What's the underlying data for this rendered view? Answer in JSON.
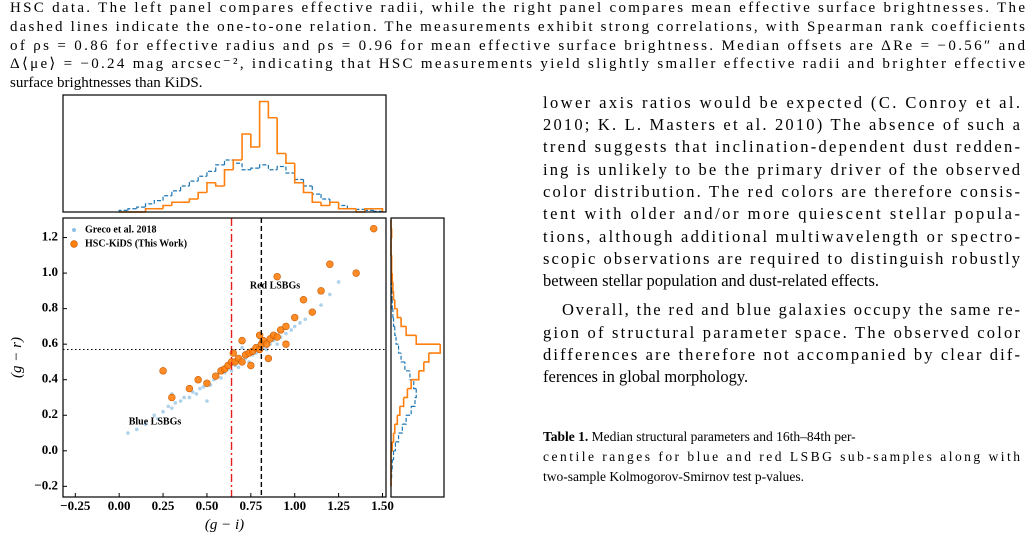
{
  "caption": {
    "lines": [
      "HSC data. The left panel compares effective radii, while the right panel compares mean effective surface brightnesses. The",
      "dashed lines indicate the one-to-one relation. The measurements exhibit strong correlations, with Spearman rank coefficients",
      "of ρs = 0.86 for effective radius and ρs = 0.96 for mean effective surface brightness. Median offsets are ΔRe = −0.56″ and",
      "Δ⟨μe⟩ = −0.24 mag arcsec⁻², indicating that HSC measurements yield slightly smaller effective radii and brighter effective",
      "surface brightnesses than KiDS."
    ]
  },
  "chart_data": [
    {
      "type": "scatter",
      "xlabel": "(g − i)",
      "ylabel": "(g − r)",
      "xlim": [
        -0.32,
        1.52
      ],
      "ylim": [
        -0.26,
        1.31
      ],
      "xticks": [
        {
          "value": -0.25,
          "label": "−0.25"
        },
        {
          "value": 0,
          "label": "0.00"
        },
        0.25,
        {
          "value": 0.5,
          "label": "0.50"
        },
        0.75,
        {
          "value": 1,
          "label": "1.00"
        },
        1.25,
        {
          "value": 1.5,
          "label": "1.50"
        }
      ],
      "yticks": [
        {
          "value": -0.2,
          "label": "−0.2"
        },
        {
          "value": 0,
          "label": "0.0"
        },
        0.2,
        0.4,
        0.6,
        0.8,
        {
          "value": 1,
          "label": "1.0"
        },
        1.2
      ],
      "legend": "upper left",
      "annotations": [
        "Red LSBGs",
        "Blue LSBGs"
      ],
      "vlines": [
        {
          "value": 0.64,
          "color": "#e8201a",
          "style": "dashdot"
        },
        {
          "value": 0.81,
          "color": "#000000",
          "style": "dashed"
        }
      ],
      "hlines": [
        {
          "value": 0.57,
          "color": "#000000",
          "style": "dotted"
        }
      ],
      "series": [
        {
          "name": "Greco et al. 2018",
          "color": "#8dbfe2",
          "x": [
            0.05,
            0.1,
            0.15,
            0.2,
            0.22,
            0.25,
            0.28,
            0.3,
            0.32,
            0.35,
            0.37,
            0.4,
            0.42,
            0.44,
            0.46,
            0.48,
            0.5,
            0.52,
            0.54,
            0.56,
            0.58,
            0.6,
            0.62,
            0.64,
            0.66,
            0.68,
            0.7,
            0.72,
            0.74,
            0.76,
            0.78,
            0.8,
            0.82,
            0.84,
            0.86,
            0.88,
            0.9,
            0.92,
            0.95,
            0.98,
            1.0,
            1.03,
            1.06,
            1.1,
            1.15,
            1.2,
            1.25,
            0.3,
            0.5,
            0.7
          ],
          "values": [
            0.1,
            0.12,
            0.15,
            0.2,
            0.18,
            0.22,
            0.25,
            0.24,
            0.27,
            0.28,
            0.3,
            0.3,
            0.33,
            0.32,
            0.35,
            0.36,
            0.38,
            0.37,
            0.4,
            0.42,
            0.41,
            0.44,
            0.46,
            0.45,
            0.48,
            0.47,
            0.5,
            0.52,
            0.5,
            0.54,
            0.55,
            0.56,
            0.58,
            0.57,
            0.6,
            0.62,
            0.6,
            0.64,
            0.66,
            0.68,
            0.7,
            0.72,
            0.74,
            0.78,
            0.82,
            0.88,
            0.95,
            0.32,
            0.28,
            0.58
          ]
        },
        {
          "name": "HSC-KiDS (This Work)",
          "color": "#ff7f0e",
          "x": [
            0.3,
            0.4,
            0.45,
            0.5,
            0.55,
            0.58,
            0.6,
            0.62,
            0.64,
            0.66,
            0.68,
            0.7,
            0.72,
            0.74,
            0.76,
            0.78,
            0.8,
            0.81,
            0.82,
            0.84,
            0.86,
            0.88,
            0.9,
            0.92,
            0.95,
            1.0,
            1.05,
            1.1,
            1.15,
            1.2,
            1.35,
            1.45,
            0.7,
            0.75,
            0.85,
            0.9,
            0.65,
            0.8,
            0.95,
            0.25
          ],
          "values": [
            0.3,
            0.35,
            0.4,
            0.38,
            0.42,
            0.45,
            0.46,
            0.48,
            0.5,
            0.5,
            0.52,
            0.5,
            0.54,
            0.55,
            0.56,
            0.58,
            0.57,
            0.6,
            0.62,
            0.6,
            0.63,
            0.65,
            0.64,
            0.68,
            0.7,
            0.75,
            0.85,
            0.78,
            0.9,
            1.05,
            1.0,
            1.25,
            0.62,
            0.48,
            0.52,
            0.98,
            0.55,
            0.65,
            0.6,
            0.45
          ]
        }
      ]
    },
    {
      "type": "histogram",
      "orientation": "vertical",
      "xlim": [
        -0.32,
        1.52
      ],
      "ylim": [
        0,
        3.6
      ],
      "bins": [
        0,
        0.05,
        0.1,
        0.15,
        0.2,
        0.25,
        0.3,
        0.35,
        0.4,
        0.45,
        0.5,
        0.55,
        0.6,
        0.65,
        0.7,
        0.75,
        0.8,
        0.85,
        0.9,
        0.95,
        1.0,
        1.05,
        1.1,
        1.15,
        1.2,
        1.25,
        1.3,
        1.35,
        1.4,
        1.45,
        1.5
      ],
      "series": [
        {
          "color": "#1f77b4",
          "dash": true,
          "values": [
            0.05,
            0.1,
            0.15,
            0.25,
            0.35,
            0.5,
            0.65,
            0.8,
            0.95,
            1.1,
            1.25,
            1.45,
            1.6,
            1.5,
            1.3,
            1.35,
            1.45,
            1.3,
            1.4,
            1.2,
            1.0,
            0.8,
            0.55,
            0.4,
            0.3,
            0.2,
            0.1,
            0.08,
            0.05,
            0.02
          ]
        },
        {
          "color": "#ff7f0e",
          "dash": false,
          "values": [
            0,
            0,
            0,
            0.1,
            0.1,
            0.2,
            0.3,
            0.3,
            0.4,
            0.6,
            0.9,
            0.8,
            1.3,
            1.6,
            2.4,
            2.0,
            3.4,
            2.9,
            1.8,
            1.5,
            0.9,
            0.6,
            0.3,
            0.2,
            0.3,
            0.1,
            0.1,
            0,
            0.1,
            0.1
          ]
        }
      ]
    },
    {
      "type": "histogram",
      "orientation": "horizontal",
      "xlim": [
        0,
        4.2
      ],
      "ylim": [
        -0.26,
        1.31
      ],
      "bins": [
        -0.2,
        -0.15,
        -0.1,
        -0.05,
        0,
        0.05,
        0.1,
        0.15,
        0.2,
        0.25,
        0.3,
        0.35,
        0.4,
        0.45,
        0.5,
        0.55,
        0.6,
        0.65,
        0.7,
        0.75,
        0.8,
        0.85,
        0.9,
        0.95,
        1.0,
        1.05,
        1.1,
        1.15,
        1.2,
        1.25,
        1.3
      ],
      "series": [
        {
          "color": "#1f77b4",
          "dash": true,
          "values": [
            0,
            0.05,
            0.1,
            0.2,
            0.35,
            0.6,
            0.9,
            1.2,
            1.6,
            1.9,
            2.0,
            1.8,
            1.5,
            1.1,
            0.8,
            0.6,
            0.4,
            0.3,
            0.2,
            0.15,
            0.1,
            0.08,
            0.05,
            0.03,
            0.02,
            0.01,
            0,
            0,
            0,
            0
          ]
        },
        {
          "color": "#ff7f0e",
          "dash": false,
          "values": [
            0,
            0,
            0,
            0,
            0.1,
            0.2,
            0.3,
            0.5,
            0.7,
            1.0,
            1.3,
            1.6,
            2.2,
            2.6,
            3.0,
            3.9,
            2.0,
            1.2,
            0.8,
            0.5,
            0.3,
            0.2,
            0.15,
            0.1,
            0.05,
            0.05,
            0,
            0,
            0.05,
            0
          ]
        }
      ]
    }
  ],
  "body": {
    "paragraphs": [
      {
        "lines": [
          "lower axis ratios would be expected (C. Conroy et al.",
          "2010; K. L. Masters et al. 2010) The absence of such a",
          "trend suggests that inclination-dependent dust redden-",
          "ing is unlikely to be the primary driver of the observed",
          "color distribution. The red colors are therefore consis-",
          "tent with older and/or more quiescent stellar popula-",
          "tions, although additional multiwavelength or spectro-",
          "scopic observations are required to distinguish robustly",
          "between stellar population and dust-related effects."
        ]
      },
      {
        "lines": [
          "Overall, the red and blue galaxies occupy the same re-",
          "gion of structural parameter space. The observed color",
          "differences are therefore not accompanied by clear dif-",
          "ferences in global morphology."
        ]
      }
    ]
  },
  "table_caption": {
    "label": "Table 1.",
    "lines": [
      "Median structural parameters and 16th–84th per-",
      "centile ranges for blue and red LSBG sub-samples along with",
      "two-sample Kolmogorov-Smirnov test p-values."
    ]
  }
}
